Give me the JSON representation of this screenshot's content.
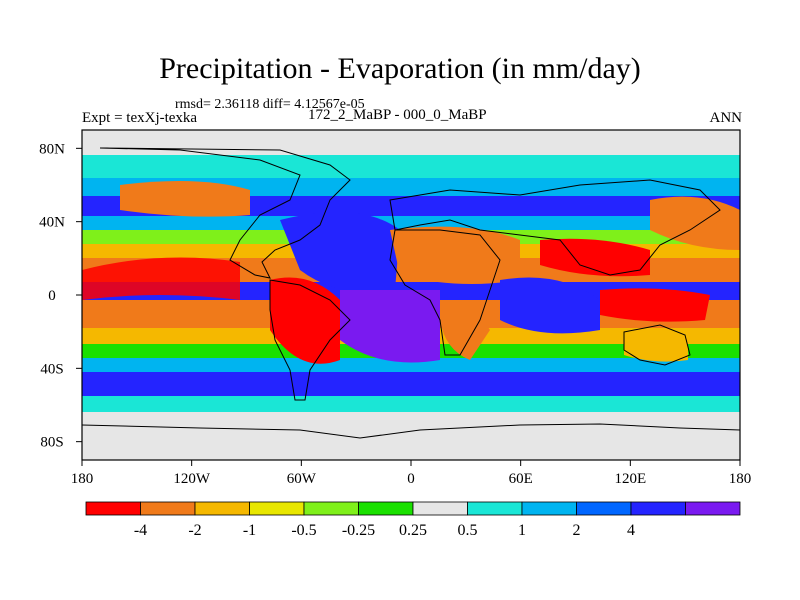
{
  "title": "Precipitation - Evaporation (in mm/day)",
  "stats": "rmsd= 2.36118 diff= 4.12567e-05",
  "experiment": "Expt = texXj-texka",
  "comparison": "172_2_MaBP - 000_0_MaBP",
  "season": "ANN",
  "lat_ticks": [
    "80N",
    "40N",
    "0",
    "40S",
    "80S"
  ],
  "lon_ticks": [
    "180",
    "120W",
    "60W",
    "0",
    "60E",
    "120E",
    "180"
  ],
  "colorbar": {
    "labels": [
      "-4",
      "-2",
      "-1",
      "-0.5",
      "-0.25",
      "0.25",
      "0.5",
      "1",
      "2",
      "4"
    ],
    "colors": [
      "#ff0000",
      "#f07a1a",
      "#f5b800",
      "#e8e600",
      "#7ff01a",
      "#1ae000",
      "#e6e6e6",
      "#1ae6d6",
      "#00b4f0",
      "#0066ff",
      "#2424ff",
      "#7a1af0"
    ]
  },
  "colors": {
    "ocean_dry": "#f07a1a",
    "wet": "#2424ff",
    "neutral": "#e6e6e6"
  }
}
